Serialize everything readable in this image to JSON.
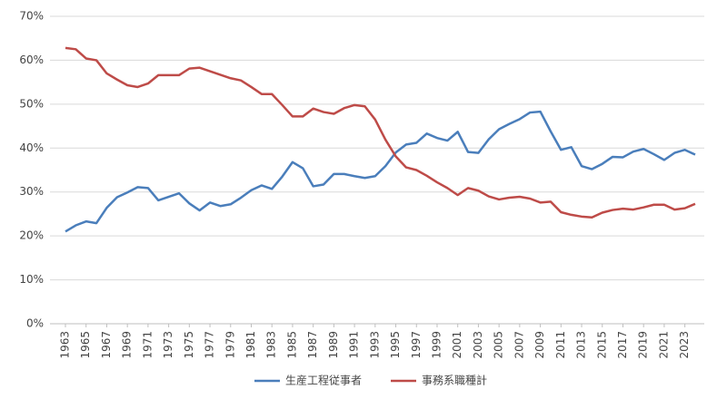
{
  "chart_data": {
    "type": "line",
    "x": [
      1963,
      1964,
      1965,
      1966,
      1967,
      1968,
      1969,
      1970,
      1971,
      1972,
      1973,
      1974,
      1975,
      1976,
      1977,
      1978,
      1979,
      1980,
      1981,
      1982,
      1983,
      1984,
      1985,
      1986,
      1987,
      1988,
      1989,
      1990,
      1991,
      1992,
      1993,
      1994,
      1995,
      1996,
      1997,
      1998,
      1999,
      2000,
      2001,
      2002,
      2003,
      2004,
      2005,
      2006,
      2007,
      2008,
      2009,
      2010,
      2011,
      2012,
      2013,
      2014,
      2015,
      2016,
      2017,
      2018,
      2019,
      2020,
      2021,
      2022,
      2023,
      2024
    ],
    "xlim": [
      1963,
      2024
    ],
    "xticks": [
      1963,
      1965,
      1967,
      1969,
      1971,
      1973,
      1975,
      1977,
      1979,
      1981,
      1983,
      1985,
      1987,
      1989,
      1991,
      1993,
      1995,
      1997,
      1999,
      2001,
      2003,
      2005,
      2007,
      2009,
      2011,
      2013,
      2015,
      2017,
      2019,
      2021,
      2023
    ],
    "ylim": [
      0,
      70
    ],
    "yticks": [
      {
        "value": 0,
        "label": "0%"
      },
      {
        "value": 10,
        "label": "10%"
      },
      {
        "value": 20,
        "label": "20%"
      },
      {
        "value": 30,
        "label": "30%"
      },
      {
        "value": 40,
        "label": "40%"
      },
      {
        "value": 50,
        "label": "50%"
      },
      {
        "value": 60,
        "label": "60%"
      },
      {
        "value": 70,
        "label": "70%"
      }
    ],
    "grid": true,
    "legend": "bottom",
    "series": [
      {
        "name": "生産工程従事者",
        "color": "#4a7ebb",
        "values": [
          21.0,
          22.4,
          23.3,
          22.9,
          26.4,
          28.8,
          29.9,
          31.1,
          30.9,
          28.1,
          28.9,
          29.7,
          27.4,
          25.8,
          27.6,
          26.8,
          27.2,
          28.7,
          30.4,
          31.5,
          30.7,
          33.5,
          36.8,
          35.4,
          31.3,
          31.7,
          34.1,
          34.1,
          33.6,
          33.2,
          33.6,
          35.9,
          39.0,
          40.8,
          41.2,
          43.3,
          42.3,
          41.7,
          43.7,
          39.1,
          38.9,
          42.0,
          44.3,
          45.5,
          46.6,
          48.1,
          48.3,
          43.8,
          39.6,
          40.2,
          35.9,
          35.2,
          36.4,
          38.0,
          37.9,
          39.2,
          39.8,
          38.6,
          37.3,
          38.9,
          39.6,
          38.5
        ]
      },
      {
        "name": "事務系職種計",
        "color": "#be4b48",
        "values": [
          62.8,
          62.5,
          60.4,
          60.0,
          57.0,
          55.6,
          54.3,
          53.9,
          54.7,
          56.6,
          56.6,
          56.6,
          58.1,
          58.3,
          57.5,
          56.7,
          55.9,
          55.4,
          53.9,
          52.3,
          52.3,
          49.8,
          47.2,
          47.2,
          49.0,
          48.2,
          47.8,
          49.1,
          49.8,
          49.5,
          46.5,
          41.9,
          38.1,
          35.6,
          35.0,
          33.7,
          32.2,
          30.9,
          29.3,
          30.9,
          30.3,
          29.0,
          28.3,
          28.7,
          28.9,
          28.5,
          27.6,
          27.8,
          25.4,
          24.8,
          24.4,
          24.2,
          25.3,
          25.9,
          26.2,
          26.0,
          26.5,
          27.1,
          27.1,
          26.0,
          26.3,
          27.3
        ]
      }
    ]
  }
}
